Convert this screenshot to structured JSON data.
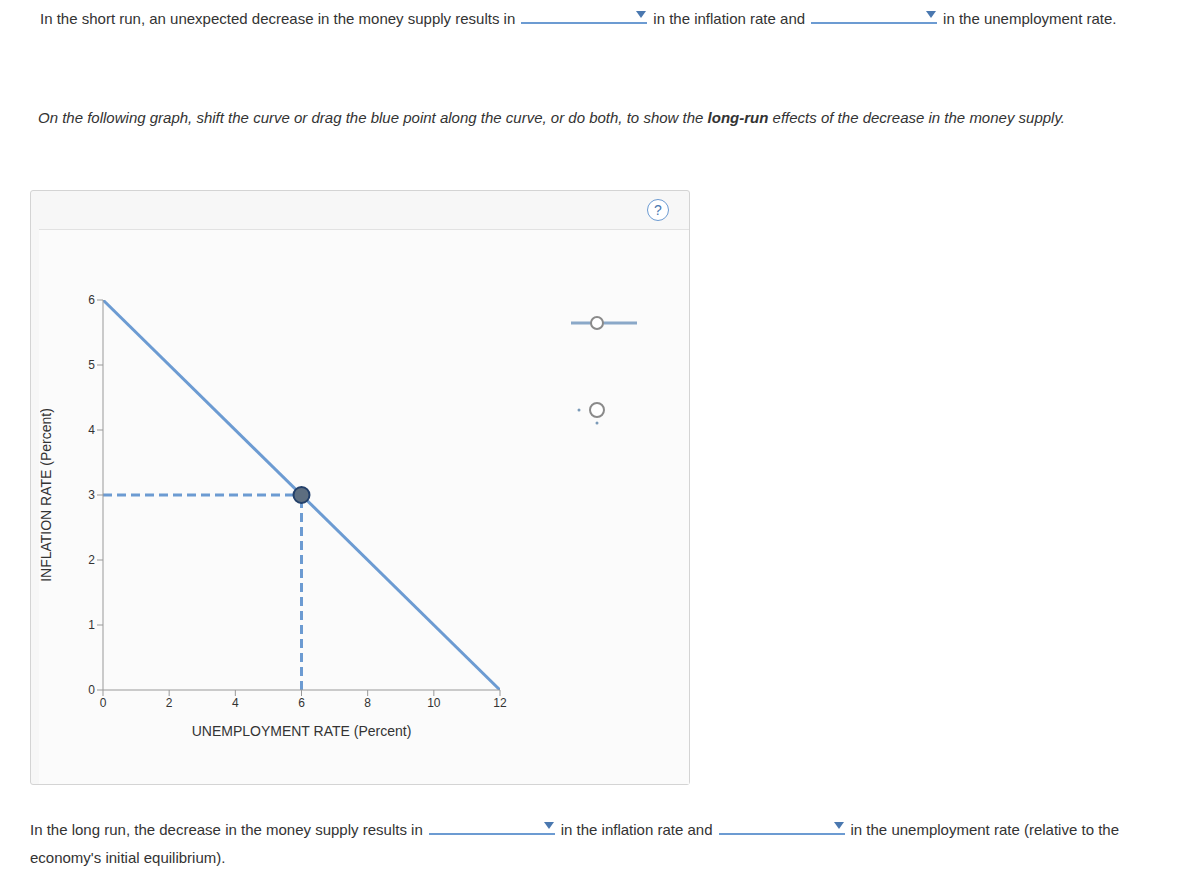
{
  "question_1": {
    "before": "In the short run, an unexpected decrease in the money supply results in",
    "middle": "in the inflation rate and",
    "after": "in the unemployment rate."
  },
  "instruction": {
    "before": "On the following graph, shift the curve or drag the blue point along the curve, or do both, to show the ",
    "bold": "long-run",
    "after": " effects of the decrease in the money supply."
  },
  "help": "?",
  "question_2": {
    "before": "In the long run, the decrease in the money supply results in",
    "middle": "in the inflation rate and",
    "after": "in the unemployment rate (relative to the economy's initial equilibrium)."
  },
  "chart_data": {
    "type": "line",
    "x_label": "UNEMPLOYMENT RATE (Percent)",
    "y_label": "INFLATION RATE (Percent)",
    "series": [
      {
        "color": "#6c9bd2",
        "x": [
          0,
          12
        ],
        "values": [
          6,
          0
        ]
      }
    ],
    "point": {
      "x": 6,
      "y": 3,
      "color": "#5d6e80",
      "line_style": "dashed"
    },
    "xlim": [
      0,
      12
    ],
    "xticks": [
      0,
      2,
      4,
      6,
      8,
      10,
      12
    ],
    "ylim": [
      0,
      6
    ],
    "yticks": [
      0,
      1,
      2,
      3,
      4,
      5,
      6
    ],
    "grid": false
  }
}
